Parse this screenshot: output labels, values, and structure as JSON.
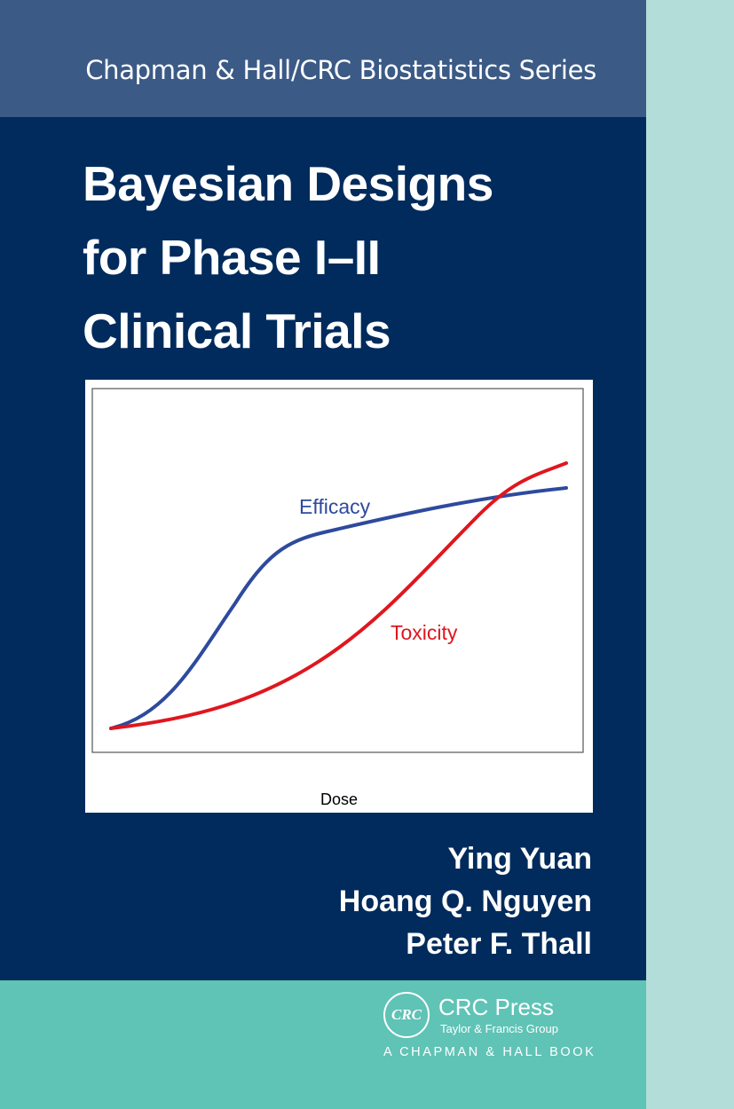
{
  "series": "Chapman & Hall/CRC Biostatistics Series",
  "title_lines": [
    "Bayesian Designs",
    "for Phase I–II",
    "Clinical Trials"
  ],
  "figure": {
    "xlabel": "Dose",
    "curves": [
      {
        "name": "Efficacy",
        "color": "#2e4a9e"
      },
      {
        "name": "Toxicity",
        "color": "#e0161e"
      }
    ]
  },
  "authors": [
    "Ying Yuan",
    "Hoang Q. Nguyen",
    "Peter F. Thall"
  ],
  "publisher": {
    "logo_text": "CRC",
    "name": "CRC Press",
    "group": "Taylor & Francis Group",
    "imprint": "A CHAPMAN & HALL BOOK"
  },
  "colors": {
    "navy": "#002b5c",
    "series_band": "#3b5a86",
    "teal": "#5fc3b6",
    "spine": "#b2ddd8"
  }
}
